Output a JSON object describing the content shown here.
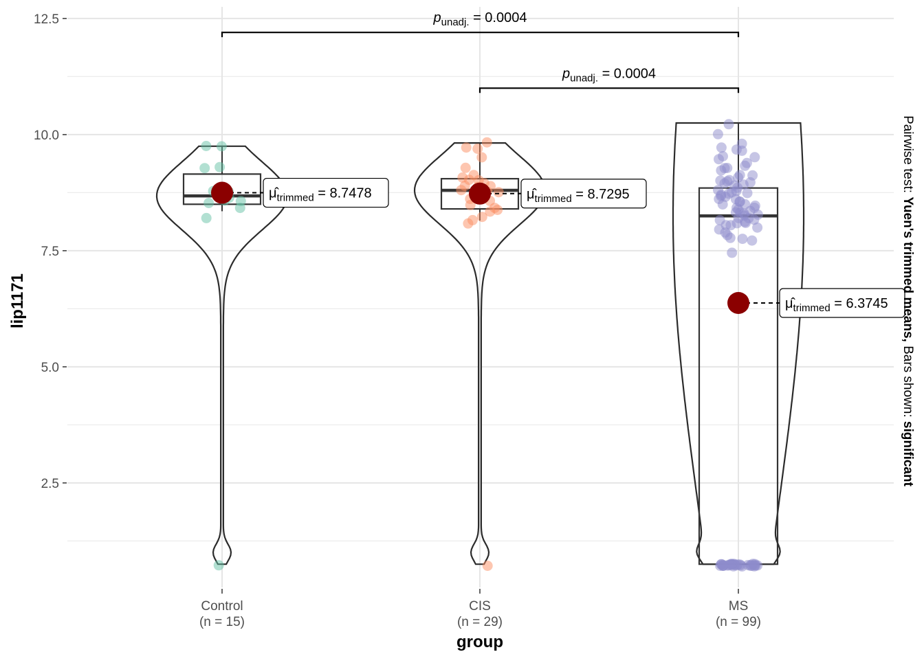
{
  "chart_data": {
    "type": "violin-box-scatter",
    "xlabel": "group",
    "ylabel": "lip1171",
    "ylim": [
      0.25,
      12.75
    ],
    "yticks": [
      2.5,
      5.0,
      7.5,
      10.0,
      12.5
    ],
    "ytick_labels": [
      "2.5",
      "5.0",
      "7.5",
      "10.0",
      "12.5"
    ],
    "grid": true,
    "caption": {
      "prefix": "Pairwise test: ",
      "test": "Yuen's trimmed means,",
      "middle": " Bars shown: ",
      "shown": "significant"
    },
    "groups": [
      {
        "name": "Control",
        "n_label": "(n = 15)",
        "color": "#66c2a5",
        "box": {
          "min": 8.35,
          "q1": 8.5,
          "median": 8.68,
          "q3": 9.15,
          "max": 9.75
        },
        "violin_range": [
          0.75,
          9.75
        ],
        "trimmed_mean": 8.7478,
        "mean_label_value": "8.7478",
        "points": [
          9.75,
          9.74,
          9.3,
          9.3,
          8.82,
          8.8,
          8.75,
          8.7,
          8.62,
          8.58,
          8.5,
          8.45,
          8.2,
          8.55,
          0.73
        ]
      },
      {
        "name": "CIS",
        "n_label": "(n = 29)",
        "color": "#fc8d62",
        "box": {
          "min": 8.15,
          "q1": 8.4,
          "median": 8.8,
          "q3": 9.05,
          "max": 9.82
        },
        "violin_range": [
          0.75,
          9.82
        ],
        "trimmed_mean": 8.7295,
        "mean_label_value": "8.7295",
        "points": [
          9.82,
          9.75,
          9.68,
          9.5,
          9.3,
          9.12,
          9.1,
          9.05,
          9.0,
          8.95,
          8.9,
          8.88,
          8.85,
          8.8,
          8.78,
          8.75,
          8.72,
          8.7,
          8.65,
          8.6,
          8.55,
          8.5,
          8.45,
          8.4,
          8.35,
          8.2,
          8.15,
          8.08,
          0.73
        ]
      },
      {
        "name": "MS",
        "n_label": "(n = 99)",
        "color": "#8d8ccb",
        "box": {
          "min": 0.75,
          "q1": 0.75,
          "median": 8.25,
          "q3": 8.85,
          "max": 10.25
        },
        "violin_range": [
          0.75,
          10.25
        ],
        "trimmed_mean": 6.3745,
        "mean_label_value": "6.3745",
        "points": [
          10.25,
          10.0,
          9.8,
          9.75,
          9.7,
          9.65,
          9.55,
          9.5,
          9.45,
          9.4,
          9.35,
          9.3,
          9.25,
          9.2,
          9.15,
          9.1,
          9.05,
          9.02,
          9.0,
          8.98,
          8.95,
          8.92,
          8.9,
          8.88,
          8.85,
          8.82,
          8.8,
          8.78,
          8.75,
          8.72,
          8.7,
          8.68,
          8.65,
          8.62,
          8.6,
          8.58,
          8.55,
          8.52,
          8.5,
          8.48,
          8.45,
          8.42,
          8.4,
          8.38,
          8.35,
          8.32,
          8.3,
          8.28,
          8.25,
          8.22,
          8.2,
          8.18,
          8.15,
          8.12,
          8.1,
          8.08,
          8.05,
          8.02,
          8.0,
          7.95,
          7.9,
          7.85,
          7.8,
          7.75,
          7.7,
          7.45,
          0.73,
          0.73,
          0.73,
          0.73,
          0.73,
          0.73,
          0.73,
          0.73,
          0.73,
          0.73,
          0.73,
          0.73,
          0.73,
          0.73,
          0.73,
          0.73,
          0.73,
          0.73,
          0.73,
          0.73,
          0.73,
          0.73,
          0.73,
          0.73,
          0.73,
          0.73,
          0.73,
          0.73,
          0.73,
          0.73,
          0.73,
          0.73,
          0.73
        ]
      }
    ],
    "comparisons": [
      {
        "from": "Control",
        "to": "MS",
        "y": 12.2,
        "p_label": "0.0004"
      },
      {
        "from": "CIS",
        "to": "MS",
        "y": 11.0,
        "p_label": "0.0004"
      }
    ],
    "mean_symbol": "μ̂",
    "mean_subscript": "trimmed",
    "p_symbol": "p",
    "p_subscript": "unadj.",
    "mean_color": "#8b0000"
  }
}
